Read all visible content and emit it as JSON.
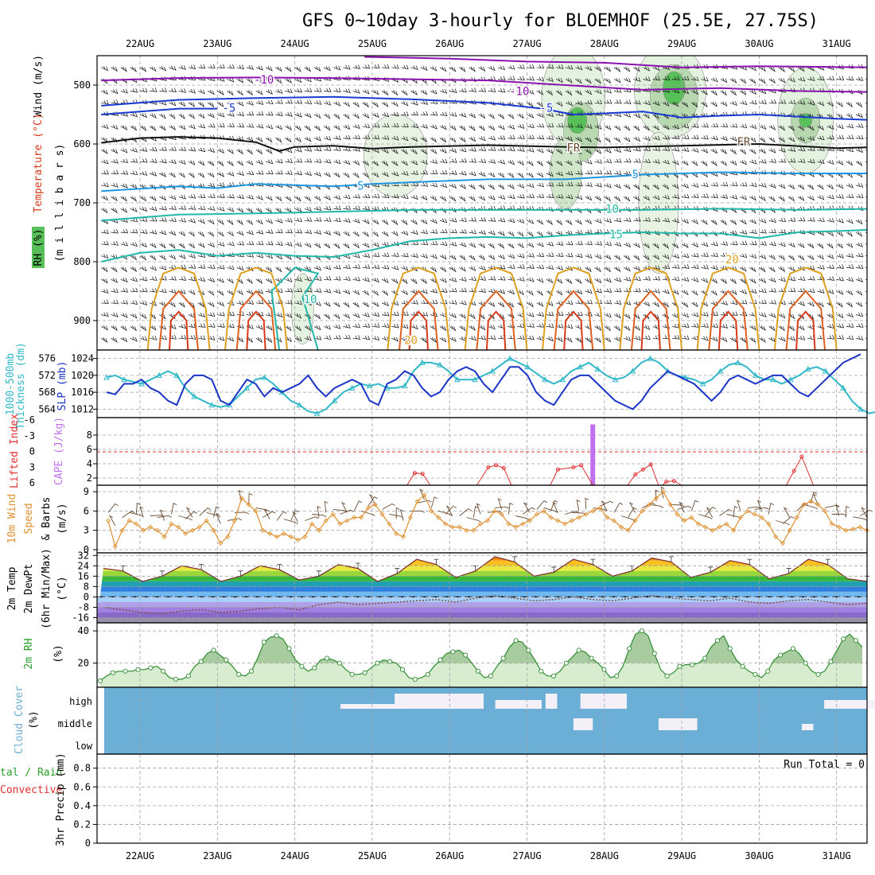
{
  "title": "GFS 0~10day 3-hourly for BLOEMHOF (25.5E, 27.75S)",
  "colors": {
    "temp_purple": "#8a12b0",
    "temp_blue": "#1a3ad4",
    "temp_lightblue": "#1e96e0",
    "temp_teal": "#22b8a8",
    "temp_orange": "#e0a020",
    "temp_red": "#d83a1a",
    "rh_green": "#3cc03c",
    "slp": "#1a34c8",
    "thickness": "#30b8c8",
    "cape": "#c070f0",
    "lifted": "#e03030",
    "wind10m": "#e09030",
    "barb": "#6a4a30",
    "cloud": "#6baed6",
    "rh2m_fill": "#d8ecd0",
    "rh2m_line": "#2e8b2e"
  },
  "chart_data": [
    {
      "type": "heatmap",
      "name_panel": "upper-air",
      "x": [
        "22AUG",
        "23AUG",
        "24AUG",
        "25AUG",
        "26AUG",
        "27AUG",
        "28AUG",
        "29AUG",
        "30AUG",
        "31AUG"
      ],
      "ylabel_parts": [
        "RH (%)",
        "Temperature (°C)",
        "Wind (m/s)"
      ],
      "ylabel_units": "(m i l l i b a r s)",
      "yticks": [
        "500",
        "600",
        "700",
        "800",
        "900"
      ],
      "ylim": [
        450,
        950
      ],
      "contour_labels": [
        {
          "text": "-10",
          "x_day": 1.6,
          "p": 497,
          "color": "temp_purple"
        },
        {
          "text": "-10",
          "x_day": 4.9,
          "p": 517,
          "color": "temp_purple"
        },
        {
          "text": "-5",
          "x_day": 1.15,
          "p": 545,
          "color": "temp_blue"
        },
        {
          "text": "-5",
          "x_day": 5.25,
          "p": 545,
          "color": "temp_blue"
        },
        {
          "text": "FR",
          "x_day": 5.6,
          "p": 613,
          "color": "barb"
        },
        {
          "text": "FR",
          "x_day": 7.8,
          "p": 603,
          "color": "barb"
        },
        {
          "text": "5",
          "x_day": 2.85,
          "p": 678,
          "color": "temp_lightblue"
        },
        {
          "text": "5",
          "x_day": 6.4,
          "p": 658,
          "color": "temp_lightblue"
        },
        {
          "text": "10",
          "x_day": 6.1,
          "p": 717,
          "color": "temp_teal"
        },
        {
          "text": "15",
          "x_day": 6.15,
          "p": 760,
          "color": "temp_teal"
        },
        {
          "text": "20",
          "x_day": 7.65,
          "p": 803,
          "color": "temp_orange"
        },
        {
          "text": "10",
          "x_day": 2.2,
          "p": 870,
          "color": "temp_teal"
        },
        {
          "text": "20",
          "x_day": 3.5,
          "p": 940,
          "color": "temp_orange"
        }
      ]
    },
    {
      "type": "line",
      "name_panel": "pressure",
      "ylabel_left": "1000-500mb Thickness (dm)",
      "ylabel_right": "SLP (mb)",
      "left_ticks": [
        "576",
        "572",
        "568",
        "564"
      ],
      "right_ticks": [
        "1024",
        "1020",
        "1016",
        "1012"
      ],
      "ylim_slp": [
        1010,
        1026
      ],
      "ylim_thickness": [
        562,
        578
      ],
      "series": [
        {
          "name": "SLP",
          "values": [
            1016,
            1015.5,
            1018,
            1018,
            1019,
            1017,
            1016,
            1014,
            1013,
            1018,
            1020,
            1020,
            1019,
            1014,
            1013,
            1016,
            1019,
            1018,
            1015,
            1017,
            1016,
            1017,
            1018,
            1020,
            1017,
            1015,
            1017,
            1018,
            1019,
            1018,
            1014,
            1013,
            1018,
            1019,
            1021,
            1020,
            1017,
            1015,
            1016,
            1019,
            1021,
            1022,
            1021,
            1018,
            1016,
            1019,
            1022,
            1022,
            1020,
            1016,
            1014,
            1013,
            1016,
            1019,
            1020,
            1020,
            1018,
            1016,
            1014,
            1013,
            1012,
            1014,
            1017,
            1019,
            1021,
            1020,
            1019,
            1018,
            1016,
            1014,
            1016,
            1019,
            1020,
            1019,
            1018,
            1019,
            1020,
            1020,
            1018,
            1016,
            1015,
            1017,
            1019,
            1021,
            1023,
            1024,
            1025
          ]
        },
        {
          "name": "Thickness",
          "values": [
            571.5,
            572,
            571,
            570.5,
            570,
            571,
            572,
            573,
            572,
            569,
            567,
            566,
            565,
            564.5,
            565,
            567,
            569,
            571,
            571.5,
            570,
            568,
            566,
            565,
            563.5,
            563,
            564,
            566,
            568,
            569,
            570,
            569.5,
            570,
            569,
            569,
            569.5,
            573,
            575,
            575,
            574.5,
            573,
            571,
            571,
            571,
            572,
            573,
            574.5,
            576,
            575,
            574,
            572.5,
            571,
            570,
            571,
            573,
            574,
            575,
            573.5,
            572,
            571,
            571.5,
            573,
            575,
            576,
            575,
            573,
            572,
            571.5,
            571,
            570,
            571,
            573,
            574.5,
            575,
            574,
            572,
            571,
            571,
            570,
            571,
            572,
            573.5,
            574,
            573,
            571,
            569,
            566,
            564,
            563,
            563.5
          ]
        }
      ]
    },
    {
      "type": "line",
      "name_panel": "stability",
      "ylabel_left": "Lifted Index",
      "ylabel_right": "CAPE (J/kg)",
      "left_ticks": [
        "-6",
        "-3",
        "0",
        "3",
        "6"
      ],
      "right_ticks": [
        "8",
        "6",
        "4",
        "2"
      ],
      "series": [
        {
          "name": "CAPE",
          "bars": [
            {
              "x_day": 5.85,
              "value": 9.5
            }
          ]
        },
        {
          "name": "Lifted Index",
          "segments": [
            [
              [
                3.45,
                1
              ],
              [
                3.55,
                2.7
              ],
              [
                3.65,
                2.6
              ],
              [
                3.75,
                1
              ]
            ],
            [
              [
                4.35,
                1
              ],
              [
                4.5,
                3.5
              ],
              [
                4.6,
                3.8
              ],
              [
                4.7,
                3.4
              ],
              [
                4.8,
                1
              ]
            ],
            [
              [
                5.3,
                1
              ],
              [
                5.4,
                3.2
              ],
              [
                5.6,
                3.5
              ],
              [
                5.7,
                3.8
              ],
              [
                5.85,
                1
              ]
            ],
            [
              [
                6.3,
                1
              ],
              [
                6.4,
                2.5
              ],
              [
                6.5,
                3.2
              ],
              [
                6.6,
                3.9
              ],
              [
                6.7,
                1
              ]
            ],
            [
              [
                6.75,
                1
              ],
              [
                6.8,
                1.5
              ],
              [
                6.9,
                1.6
              ],
              [
                7.0,
                1
              ]
            ],
            [
              [
                8.35,
                1
              ],
              [
                8.45,
                3
              ],
              [
                8.55,
                5
              ],
              [
                8.7,
                1
              ]
            ]
          ]
        }
      ]
    },
    {
      "type": "line",
      "name_panel": "wind10m",
      "ylabel_lines": [
        "10m Wind",
        "Speed",
        "& Barbs"
      ],
      "ylabel_units": "(m/s)",
      "yticks": [
        "9",
        "6",
        "3",
        "0"
      ],
      "ylim": [
        0,
        10
      ],
      "series": [
        {
          "name": "Speed",
          "values": [
            4.5,
            0.5,
            3,
            4.5,
            4,
            3,
            3.5,
            3,
            2,
            4,
            3.5,
            2.5,
            3,
            3.5,
            4.5,
            3,
            1,
            2,
            4.5,
            8,
            7,
            6,
            3,
            2.5,
            2,
            2.5,
            2,
            1.5,
            2,
            4,
            3,
            4.5,
            5.5,
            4,
            4.5,
            5,
            5,
            6.5,
            7,
            5.5,
            4,
            2.5,
            2,
            5,
            7.5,
            8.5,
            6,
            5,
            4,
            3.5,
            3.5,
            3,
            3,
            4,
            4.5,
            6,
            5.5,
            4,
            3.5,
            4,
            4.5,
            5.5,
            6,
            5,
            4.5,
            4,
            4.5,
            5,
            5.5,
            6,
            6.5,
            5,
            4.5,
            3.5,
            3,
            4.5,
            6,
            7,
            8,
            9,
            7,
            5.5,
            4.5,
            5,
            4,
            3.5,
            3,
            3.5,
            4,
            3,
            5,
            6,
            5.5,
            5,
            4,
            2,
            1,
            3,
            5,
            7,
            7.5,
            7,
            6,
            4,
            3.5,
            3,
            3.2,
            3.5,
            3
          ]
        }
      ]
    },
    {
      "type": "area",
      "name_panel": "temperature",
      "ylabel_lines": [
        "2m Temp",
        "2m DewPt",
        "(6hr Min/Max)"
      ],
      "ylabel_units": "(°C)",
      "yticks": [
        "32",
        "24",
        "16",
        "8",
        "0",
        "-8",
        "-16"
      ],
      "ylim": [
        -20,
        34
      ],
      "series": [
        {
          "name": "Temp",
          "values": [
            22,
            20,
            12,
            16,
            24,
            21,
            12,
            16,
            24,
            21,
            13,
            16,
            25,
            22,
            12,
            18,
            29,
            25,
            15,
            20,
            31,
            27,
            16,
            19,
            29,
            25,
            16,
            20,
            30,
            27,
            15,
            19,
            28,
            25,
            14,
            18,
            29,
            25,
            14,
            12
          ]
        },
        {
          "name": "DewPt",
          "values": [
            -8,
            -10,
            -12,
            -13,
            -11,
            -10,
            -12,
            -11,
            -9,
            -8,
            -10,
            -6,
            -4,
            -6,
            -5,
            -4,
            -3,
            -2,
            -4,
            -1,
            1,
            -1,
            -3,
            -2,
            0,
            -2,
            -3,
            -1,
            1,
            -1,
            -2,
            -3,
            -1,
            -4,
            -5,
            -3,
            -2,
            -4,
            -6,
            -5
          ]
        }
      ]
    },
    {
      "type": "area",
      "name_panel": "rh2m",
      "ylabel": "2m RH",
      "ylabel_units": "(%)",
      "yticks": [
        "40",
        "20"
      ],
      "ylim": [
        5,
        45
      ],
      "series": [
        {
          "name": "RH",
          "values": [
            9,
            12,
            14,
            15,
            15,
            15,
            16,
            16,
            17,
            18,
            15,
            11,
            10,
            10,
            12,
            18,
            21,
            26,
            28,
            25,
            22,
            18,
            13,
            12,
            15,
            23,
            33,
            36,
            37,
            35,
            29,
            22,
            18,
            15,
            17,
            22,
            23,
            22,
            20,
            16,
            13,
            13,
            14,
            17,
            20,
            22,
            21,
            20,
            16,
            11,
            10,
            11,
            13,
            18,
            22,
            26,
            27,
            28,
            25,
            20,
            15,
            11,
            12,
            18,
            23,
            30,
            34,
            33,
            28,
            22,
            15,
            12,
            12,
            15,
            20,
            24,
            28,
            27,
            23,
            20,
            16,
            11,
            12,
            18,
            29,
            38,
            40,
            37,
            26,
            16,
            12,
            14,
            18,
            19,
            19,
            20,
            23,
            30,
            34,
            37,
            29,
            22,
            18,
            15,
            13,
            11,
            15,
            22,
            25,
            27,
            29,
            26,
            20,
            15,
            13,
            15,
            21,
            28,
            35,
            38,
            34,
            30
          ]
        }
      ]
    },
    {
      "type": "bar",
      "name_panel": "cloud",
      "ylabel": "Cloud Cover",
      "ylabel_units": "(%)",
      "levels": [
        "high",
        "middle",
        "low"
      ]
    },
    {
      "type": "bar",
      "name_panel": "precip",
      "ylabel_right": "3hr Precip (mm)",
      "ylabel_left_a": "tal / Rain",
      "ylabel_left_b": "Convective",
      "yticks": [
        "0.8",
        "0.6",
        "0.4",
        "0.2",
        "0"
      ],
      "ylim": [
        0,
        0.95
      ],
      "annotation": "Run Total = 0"
    }
  ]
}
